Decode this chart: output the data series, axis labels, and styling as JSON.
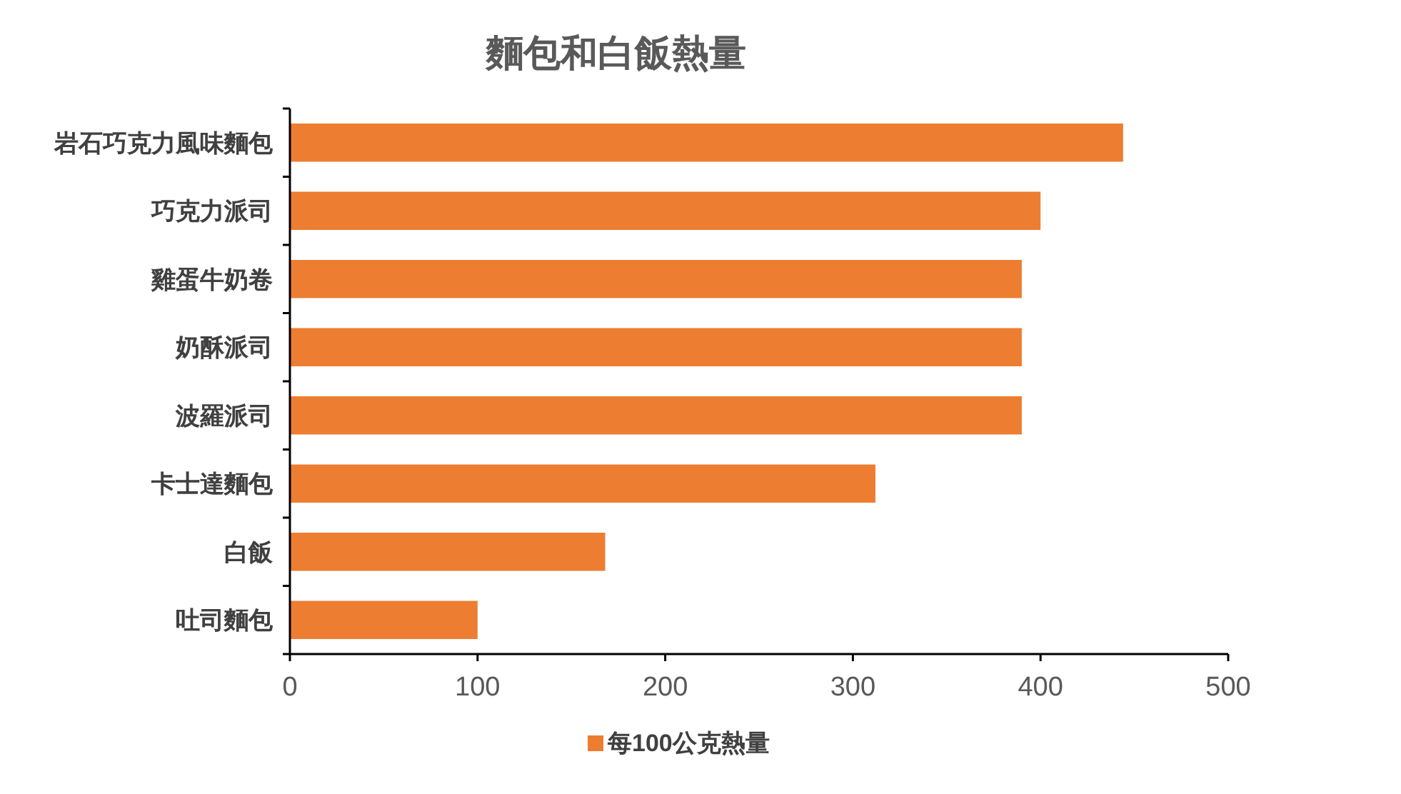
{
  "chart_data": {
    "type": "bar",
    "orientation": "horizontal",
    "title": "麵包和白飯熱量",
    "categories": [
      "岩石巧克力風味麵包",
      "巧克力派司",
      "雞蛋牛奶卷",
      "奶酥派司",
      "波羅派司",
      "卡士達麵包",
      "白飯",
      "吐司麵包"
    ],
    "series": [
      {
        "name": "每100公克熱量",
        "color": "#ed7d31",
        "values": [
          444,
          400,
          390,
          390,
          390,
          312,
          168,
          100
        ]
      }
    ],
    "xlim": [
      0,
      500
    ],
    "xticks": [
      0,
      100,
      200,
      300,
      400,
      500
    ],
    "grid": false,
    "legend": "bottom"
  }
}
